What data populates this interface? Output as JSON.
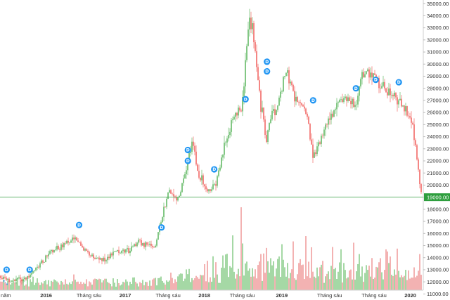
{
  "chart_data": {
    "type": "candlestick",
    "y_axis": {
      "position": "right",
      "range": [
        10500,
        35300
      ],
      "ticks": [
        "11000.00",
        "12000.00",
        "13000.00",
        "14000.00",
        "15000.00",
        "16000.00",
        "17000.00",
        "18000.00",
        "19000.00",
        "20000.00",
        "21000.00",
        "22000.00",
        "23000.00",
        "24000.00",
        "25000.00",
        "26000.00",
        "27000.00",
        "28000.00",
        "29000.00",
        "30000.00",
        "31000.00",
        "32000.00",
        "33000.00",
        "34000.00",
        "35000.00"
      ]
    },
    "x_axis": {
      "ticks": [
        {
          "label": "ng năm",
          "pos": -0.02,
          "bold": false
        },
        {
          "label": "2016",
          "pos": 0.14,
          "bold": true
        },
        {
          "label": "Tháng sáu",
          "pos": 0.27,
          "bold": false
        },
        {
          "label": "2017",
          "pos": 0.38,
          "bold": true
        },
        {
          "label": "Tháng sáu",
          "pos": 0.51,
          "bold": false
        },
        {
          "label": "2018",
          "pos": 0.62,
          "bold": true
        },
        {
          "label": "Tháng sáu",
          "pos": 0.735,
          "bold": false
        },
        {
          "label": "2019",
          "pos": 0.855,
          "bold": true
        },
        {
          "label": "Tháng sáu",
          "pos": 1.0,
          "bold": false
        },
        {
          "label": "Tháng sáu",
          "pos": 1.135,
          "bold": false
        },
        {
          "label": "2020",
          "pos": 1.245,
          "bold": true
        }
      ]
    },
    "price_path": [
      [
        0,
        12500
      ],
      [
        0.03,
        12100
      ],
      [
        0.08,
        12300
      ],
      [
        0.11,
        13000
      ],
      [
        0.15,
        14400
      ],
      [
        0.19,
        15000
      ],
      [
        0.22,
        15600
      ],
      [
        0.24,
        15200
      ],
      [
        0.28,
        14100
      ],
      [
        0.31,
        13800
      ],
      [
        0.35,
        14500
      ],
      [
        0.39,
        14600
      ],
      [
        0.42,
        15300
      ],
      [
        0.445,
        15000
      ],
      [
        0.47,
        14900
      ],
      [
        0.49,
        17200
      ],
      [
        0.51,
        19400
      ],
      [
        0.54,
        18800
      ],
      [
        0.56,
        20800
      ],
      [
        0.585,
        23800
      ],
      [
        0.6,
        21000
      ],
      [
        0.63,
        19600
      ],
      [
        0.655,
        20100
      ],
      [
        0.68,
        23000
      ],
      [
        0.71,
        25800
      ],
      [
        0.735,
        26400
      ],
      [
        0.755,
        34000
      ],
      [
        0.765,
        33000
      ],
      [
        0.79,
        26800
      ],
      [
        0.81,
        23600
      ],
      [
        0.82,
        25600
      ],
      [
        0.84,
        26400
      ],
      [
        0.87,
        29600
      ],
      [
        0.89,
        27500
      ],
      [
        0.91,
        26800
      ],
      [
        0.93,
        25900
      ],
      [
        0.95,
        22300
      ],
      [
        0.98,
        24200
      ],
      [
        1.01,
        25800
      ],
      [
        1.03,
        26800
      ],
      [
        1.05,
        27400
      ],
      [
        1.08,
        26600
      ],
      [
        1.1,
        29000
      ],
      [
        1.13,
        29300
      ],
      [
        1.16,
        28000
      ],
      [
        1.19,
        27600
      ],
      [
        1.22,
        26500
      ],
      [
        1.24,
        26000
      ],
      [
        1.255,
        24500
      ],
      [
        1.27,
        21000
      ],
      [
        1.28,
        19000
      ]
    ],
    "last_price": {
      "value": 19000,
      "label": "19000.00"
    },
    "dividend_markers": [
      {
        "label": "D",
        "pos": 0.02,
        "price": 13000
      },
      {
        "label": "D",
        "pos": 0.09,
        "price": 13000
      },
      {
        "label": "D",
        "pos": 0.24,
        "price": 16700
      },
      {
        "label": "D",
        "pos": 0.49,
        "price": 16500
      },
      {
        "label": "D",
        "pos": 0.57,
        "price": 22900
      },
      {
        "label": "D",
        "pos": 0.57,
        "price": 22000
      },
      {
        "label": "D",
        "pos": 0.65,
        "price": 21300
      },
      {
        "label": "D",
        "pos": 0.745,
        "price": 27100
      },
      {
        "label": "D",
        "pos": 0.81,
        "price": 30200
      },
      {
        "label": "D",
        "pos": 0.81,
        "price": 29400
      },
      {
        "label": "D",
        "pos": 0.95,
        "price": 27000
      },
      {
        "label": "D",
        "pos": 1.08,
        "price": 28000
      },
      {
        "label": "D",
        "pos": 1.14,
        "price": 28700
      },
      {
        "label": "D",
        "pos": 1.21,
        "price": 28500
      }
    ],
    "colors": {
      "up": "#4caf50",
      "down": "#ef5350",
      "volume_up": "#8fcf8f",
      "volume_down": "#f0a0a0",
      "last_price": "#2e9e3e",
      "marker": "#2196f3"
    }
  }
}
